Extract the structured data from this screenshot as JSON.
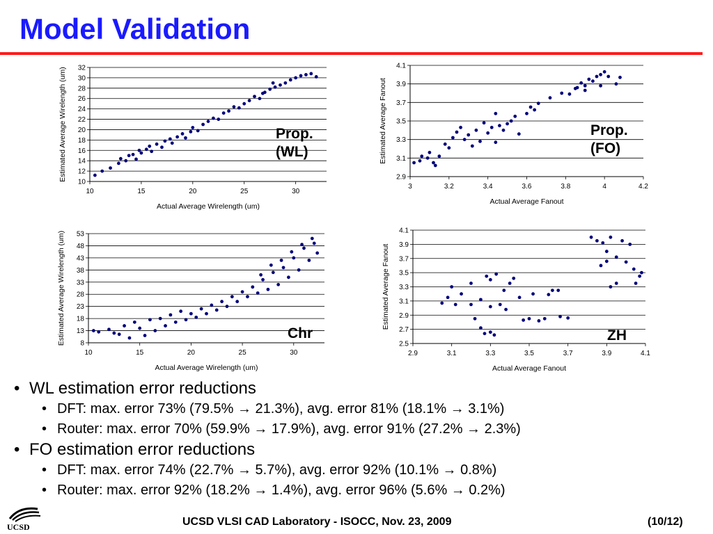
{
  "slide": {
    "title": "Model Validation",
    "footer_text": "UCSD VLSI CAD Laboratory  - ISOCC, Nov. 23, 2009",
    "page_number": "(10/12)",
    "logo_text": "UCSD"
  },
  "colors": {
    "title": "#1a1aff",
    "rule": "#ff1a1a",
    "marker": "#00007a"
  },
  "bullets": {
    "wl_heading": "WL estimation error reductions",
    "wl_dft": "DFT: max. error 73% (79.5% → 21.3%), avg. error 81% (18.1% → 3.1%)",
    "wl_router": "Router: max. error 70% (59.9% → 17.9%), avg. error 91% (27.2% → 2.3%)",
    "fo_heading": "FO estimation error reductions",
    "fo_dft": "DFT: max. error 74% (22.7% → 5.7%), avg. error 92% (10.1% → 0.8%)",
    "fo_router": "Router: max. error 92% (18.2% → 1.4%), avg. error 96% (5.6% → 0.2%)"
  },
  "chart_data": [
    {
      "type": "scatter",
      "label": "Prop.\n(WL)",
      "xlabel": "Actual Average Wirelength (um)",
      "ylabel": "Estimated Average Wirelength (um)",
      "xlim": [
        10,
        33
      ],
      "ylim": [
        10,
        32
      ],
      "xticks": [
        10,
        15,
        20,
        25,
        30
      ],
      "yticks": [
        10,
        12,
        14,
        16,
        18,
        20,
        22,
        24,
        26,
        28,
        30,
        32
      ],
      "grid": "horizontal",
      "series": [
        {
          "color": "#00007a",
          "points": [
            [
              10.5,
              11.2
            ],
            [
              11.2,
              12.0
            ],
            [
              12.0,
              12.6
            ],
            [
              12.8,
              13.5
            ],
            [
              13.0,
              14.4
            ],
            [
              13.5,
              14.0
            ],
            [
              13.8,
              15.0
            ],
            [
              14.2,
              15.2
            ],
            [
              14.5,
              14.3
            ],
            [
              14.8,
              16.0
            ],
            [
              15.0,
              15.5
            ],
            [
              15.5,
              16.2
            ],
            [
              15.8,
              16.8
            ],
            [
              16.0,
              15.8
            ],
            [
              16.5,
              17.2
            ],
            [
              17.0,
              16.6
            ],
            [
              17.3,
              17.8
            ],
            [
              17.8,
              18.2
            ],
            [
              18.0,
              17.4
            ],
            [
              18.5,
              18.6
            ],
            [
              19.0,
              19.2
            ],
            [
              19.3,
              18.4
            ],
            [
              19.8,
              19.6
            ],
            [
              20.0,
              20.4
            ],
            [
              20.5,
              19.8
            ],
            [
              21.0,
              21.0
            ],
            [
              21.5,
              21.6
            ],
            [
              22.0,
              22.2
            ],
            [
              22.5,
              22.0
            ],
            [
              23.0,
              23.2
            ],
            [
              23.5,
              23.6
            ],
            [
              24.0,
              24.4
            ],
            [
              24.5,
              24.2
            ],
            [
              25.0,
              25.0
            ],
            [
              25.5,
              25.6
            ],
            [
              26.0,
              26.4
            ],
            [
              26.5,
              26.0
            ],
            [
              27.0,
              27.2
            ],
            [
              27.5,
              27.8
            ],
            [
              28.0,
              28.2
            ],
            [
              28.5,
              28.6
            ],
            [
              29.0,
              29.0
            ],
            [
              29.5,
              29.6
            ],
            [
              30.0,
              30.0
            ],
            [
              30.5,
              30.4
            ],
            [
              31.0,
              30.6
            ],
            [
              31.5,
              30.8
            ],
            [
              32.0,
              30.2
            ],
            [
              27.8,
              29.0
            ],
            [
              26.8,
              27.0
            ]
          ]
        }
      ]
    },
    {
      "type": "scatter",
      "label": "Prop.\n(FO)",
      "xlabel": "Actual Average Fanout",
      "ylabel": "Estimated Average Fanout",
      "xlim": [
        3.0,
        4.2
      ],
      "ylim": [
        2.9,
        4.1
      ],
      "xticks": [
        3,
        3.2,
        3.4,
        3.6,
        3.8,
        4,
        4.2
      ],
      "yticks": [
        2.9,
        3.1,
        3.3,
        3.5,
        3.7,
        3.9,
        4.1
      ],
      "grid": "horizontal",
      "series": [
        {
          "color": "#00007a",
          "points": [
            [
              3.05,
              3.07
            ],
            [
              3.06,
              3.12
            ],
            [
              3.09,
              3.1
            ],
            [
              3.1,
              3.16
            ],
            [
              3.12,
              3.05
            ],
            [
              3.13,
              3.02
            ],
            [
              3.15,
              3.12
            ],
            [
              3.18,
              3.25
            ],
            [
              3.2,
              3.21
            ],
            [
              3.22,
              3.32
            ],
            [
              3.24,
              3.38
            ],
            [
              3.26,
              3.43
            ],
            [
              3.28,
              3.3
            ],
            [
              3.3,
              3.35
            ],
            [
              3.32,
              3.23
            ],
            [
              3.34,
              3.4
            ],
            [
              3.36,
              3.28
            ],
            [
              3.38,
              3.48
            ],
            [
              3.4,
              3.37
            ],
            [
              3.42,
              3.43
            ],
            [
              3.44,
              3.58
            ],
            [
              3.46,
              3.45
            ],
            [
              3.48,
              3.4
            ],
            [
              3.5,
              3.47
            ],
            [
              3.52,
              3.5
            ],
            [
              3.54,
              3.55
            ],
            [
              3.56,
              3.36
            ],
            [
              3.6,
              3.58
            ],
            [
              3.62,
              3.65
            ],
            [
              3.64,
              3.62
            ],
            [
              3.66,
              3.69
            ],
            [
              3.72,
              3.75
            ],
            [
              3.78,
              3.8
            ],
            [
              3.82,
              3.79
            ],
            [
              3.86,
              3.86
            ],
            [
              3.88,
              3.91
            ],
            [
              3.9,
              3.88
            ],
            [
              3.92,
              3.95
            ],
            [
              3.94,
              3.93
            ],
            [
              3.96,
              3.98
            ],
            [
              3.98,
              4.0
            ],
            [
              4.0,
              4.03
            ],
            [
              4.02,
              3.98
            ],
            [
              4.06,
              3.9
            ],
            [
              4.08,
              3.97
            ],
            [
              3.98,
              3.88
            ],
            [
              3.9,
              3.83
            ],
            [
              3.85,
              3.85
            ],
            [
              3.02,
              3.05
            ],
            [
              3.44,
              3.27
            ]
          ]
        }
      ]
    },
    {
      "type": "scatter",
      "label": "Chr",
      "xlabel": "Actual Average Wirelength (um)",
      "ylabel": "Estimated Average Wirelength (um)",
      "xlim": [
        10,
        33
      ],
      "ylim": [
        8,
        53
      ],
      "xticks": [
        10,
        15,
        20,
        25,
        30
      ],
      "yticks": [
        8,
        13,
        18,
        23,
        28,
        33,
        38,
        43,
        48,
        53
      ],
      "grid": "horizontal",
      "series": [
        {
          "color": "#00007a",
          "points": [
            [
              10.5,
              13.0
            ],
            [
              11.0,
              12.5
            ],
            [
              12.0,
              13.5
            ],
            [
              12.5,
              12.0
            ],
            [
              13.0,
              11.5
            ],
            [
              13.5,
              15.0
            ],
            [
              14.0,
              10.0
            ],
            [
              14.5,
              16.5
            ],
            [
              15.0,
              14.0
            ],
            [
              15.5,
              11.0
            ],
            [
              16.0,
              17.5
            ],
            [
              16.5,
              13.0
            ],
            [
              17.0,
              18.0
            ],
            [
              17.5,
              15.0
            ],
            [
              18.0,
              19.5
            ],
            [
              18.5,
              16.5
            ],
            [
              19.0,
              21.0
            ],
            [
              19.5,
              17.5
            ],
            [
              20.0,
              20.0
            ],
            [
              20.5,
              18.5
            ],
            [
              21.0,
              22.0
            ],
            [
              21.5,
              20.0
            ],
            [
              22.0,
              23.5
            ],
            [
              22.5,
              21.5
            ],
            [
              23.0,
              25.0
            ],
            [
              23.5,
              23.0
            ],
            [
              24.0,
              27.0
            ],
            [
              24.5,
              25.0
            ],
            [
              25.0,
              29.0
            ],
            [
              25.5,
              27.0
            ],
            [
              26.0,
              31.0
            ],
            [
              26.5,
              28.5
            ],
            [
              27.0,
              34.0
            ],
            [
              27.5,
              30.0
            ],
            [
              28.0,
              37.0
            ],
            [
              28.5,
              32.0
            ],
            [
              29.0,
              39.0
            ],
            [
              29.5,
              35.0
            ],
            [
              30.0,
              43.0
            ],
            [
              30.5,
              38.0
            ],
            [
              31.0,
              47.0
            ],
            [
              31.5,
              42.0
            ],
            [
              32.0,
              49.0
            ],
            [
              32.3,
              45.0
            ],
            [
              31.8,
              51.0
            ],
            [
              30.8,
              48.5
            ],
            [
              29.8,
              45.5
            ],
            [
              28.8,
              42.0
            ],
            [
              27.8,
              40.0
            ],
            [
              26.8,
              36.0
            ]
          ]
        }
      ]
    },
    {
      "type": "scatter",
      "label": "ZH",
      "xlabel": "Actual Average Fanout",
      "ylabel": "Estimated Average Fanout",
      "xlim": [
        2.9,
        4.1
      ],
      "ylim": [
        2.5,
        4.1
      ],
      "xticks": [
        2.9,
        3.1,
        3.3,
        3.5,
        3.7,
        3.9,
        4.1
      ],
      "yticks": [
        2.5,
        2.7,
        2.9,
        3.1,
        3.3,
        3.5,
        3.7,
        3.9,
        4.1
      ],
      "grid": "horizontal",
      "series": [
        {
          "color": "#00007a",
          "points": [
            [
              3.05,
              3.07
            ],
            [
              3.08,
              3.15
            ],
            [
              3.1,
              3.3
            ],
            [
              3.12,
              3.05
            ],
            [
              3.15,
              3.2
            ],
            [
              3.2,
              3.35
            ],
            [
              3.22,
              2.85
            ],
            [
              3.25,
              2.72
            ],
            [
              3.27,
              2.64
            ],
            [
              3.3,
              2.66
            ],
            [
              3.32,
              2.62
            ],
            [
              3.28,
              3.45
            ],
            [
              3.3,
              3.4
            ],
            [
              3.33,
              3.48
            ],
            [
              3.35,
              3.05
            ],
            [
              3.37,
              3.25
            ],
            [
              3.4,
              3.35
            ],
            [
              3.42,
              3.42
            ],
            [
              3.45,
              3.15
            ],
            [
              3.47,
              2.83
            ],
            [
              3.5,
              2.85
            ],
            [
              3.52,
              3.2
            ],
            [
              3.55,
              2.82
            ],
            [
              3.58,
              2.85
            ],
            [
              3.62,
              3.25
            ],
            [
              3.65,
              3.25
            ],
            [
              3.66,
              2.88
            ],
            [
              3.7,
              2.86
            ],
            [
              3.82,
              4.0
            ],
            [
              3.85,
              3.95
            ],
            [
              3.88,
              3.92
            ],
            [
              3.9,
              3.8
            ],
            [
              3.92,
              4.0
            ],
            [
              3.95,
              3.72
            ],
            [
              3.98,
              3.95
            ],
            [
              4.0,
              3.65
            ],
            [
              4.02,
              3.9
            ],
            [
              4.04,
              3.55
            ],
            [
              3.92,
              3.3
            ],
            [
              3.95,
              3.35
            ],
            [
              4.05,
              3.35
            ],
            [
              4.07,
              3.45
            ],
            [
              4.08,
              3.5
            ],
            [
              3.87,
              3.6
            ],
            [
              3.9,
              3.66
            ],
            [
              3.3,
              3.02
            ],
            [
              3.2,
              3.05
            ],
            [
              3.38,
              2.98
            ],
            [
              3.25,
              3.12
            ],
            [
              3.6,
              3.19
            ]
          ]
        }
      ]
    }
  ]
}
